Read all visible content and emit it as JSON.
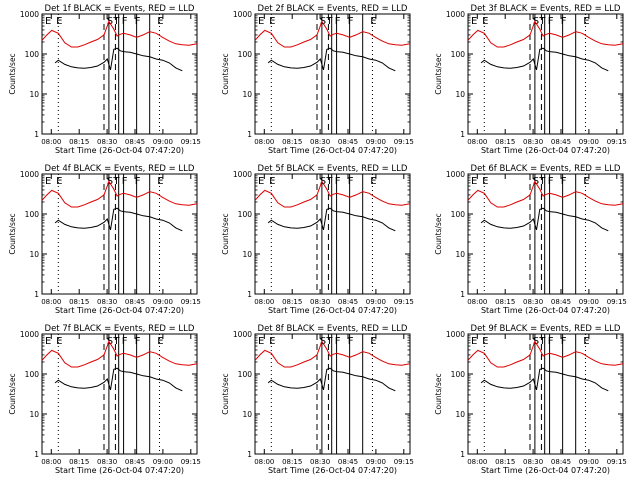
{
  "figure": {
    "panel_titles": [
      "Det 1f BLACK = Events, RED = LLD",
      "Det 2f BLACK = Events, RED = LLD",
      "Det 3f BLACK = Events, RED = LLD",
      "Det 4f BLACK = Events, RED = LLD",
      "Det 5f BLACK = Events, RED = LLD",
      "Det 6f BLACK = Events, RED = LLD",
      "Det 7f BLACK = Events, RED = LLD",
      "Det 8f BLACK = Events, RED = LLD",
      "Det 9f BLACK = Events, RED = LLD"
    ],
    "xlabel": "Start Time (26-Oct-04 07:47:20)",
    "ylabel": "Counts/sec",
    "y_ticks": [
      "1",
      "10",
      "100",
      "1000"
    ],
    "x_ticks": [
      "08:00",
      "08:15",
      "08:30",
      "08:45",
      "09:00",
      "09:15"
    ],
    "marker_labels": {
      "E": "E",
      "S": "S",
      "F": "F"
    },
    "colors": {
      "events": "#000000",
      "lld": "#dd0000",
      "axes": "#000000"
    }
  },
  "chart_data": {
    "type": "line",
    "yscale": "log",
    "ylim": [
      1,
      1000
    ],
    "xlim_min": [
      0,
      95
    ],
    "start_time": "26-Oct-04 07:47:20",
    "series": [
      {
        "name": "BLACK = Events",
        "color": "#000000",
        "x": [
          8,
          10,
          14,
          18,
          22,
          26,
          30,
          34,
          38,
          40,
          42,
          44,
          46,
          48,
          50,
          54,
          58,
          62,
          66,
          70,
          74,
          78,
          82,
          86
        ],
        "values": [
          60,
          70,
          55,
          48,
          45,
          44,
          46,
          50,
          62,
          75,
          40,
          130,
          140,
          120,
          115,
          110,
          100,
          90,
          85,
          75,
          70,
          60,
          45,
          38
        ]
      },
      {
        "name": "RED = LLD",
        "color": "#dd0000",
        "x": [
          0,
          3,
          6,
          10,
          14,
          18,
          22,
          26,
          30,
          34,
          38,
          41,
          44,
          46,
          48,
          50,
          54,
          58,
          62,
          66,
          70,
          74,
          78,
          82,
          86,
          90,
          95
        ],
        "values": [
          220,
          300,
          390,
          330,
          190,
          150,
          150,
          170,
          200,
          230,
          300,
          650,
          420,
          280,
          310,
          330,
          300,
          260,
          300,
          360,
          330,
          260,
          210,
          180,
          170,
          165,
          180
        ]
      }
    ],
    "marker_lines": [
      {
        "x": 10,
        "style": "dotted",
        "label": "E"
      },
      {
        "x": 38,
        "style": "dashed",
        "label": ""
      },
      {
        "x": 41,
        "style": "solid",
        "label": "S"
      },
      {
        "x": 45,
        "style": "dashed",
        "label": "T"
      },
      {
        "x": 47,
        "style": "solid",
        "label": ""
      },
      {
        "x": 50,
        "style": "solid",
        "label": "F"
      },
      {
        "x": 58,
        "style": "solid",
        "label": "F"
      },
      {
        "x": 66,
        "style": "solid",
        "label": ""
      },
      {
        "x": 72,
        "style": "dotted",
        "label": "E"
      }
    ]
  }
}
